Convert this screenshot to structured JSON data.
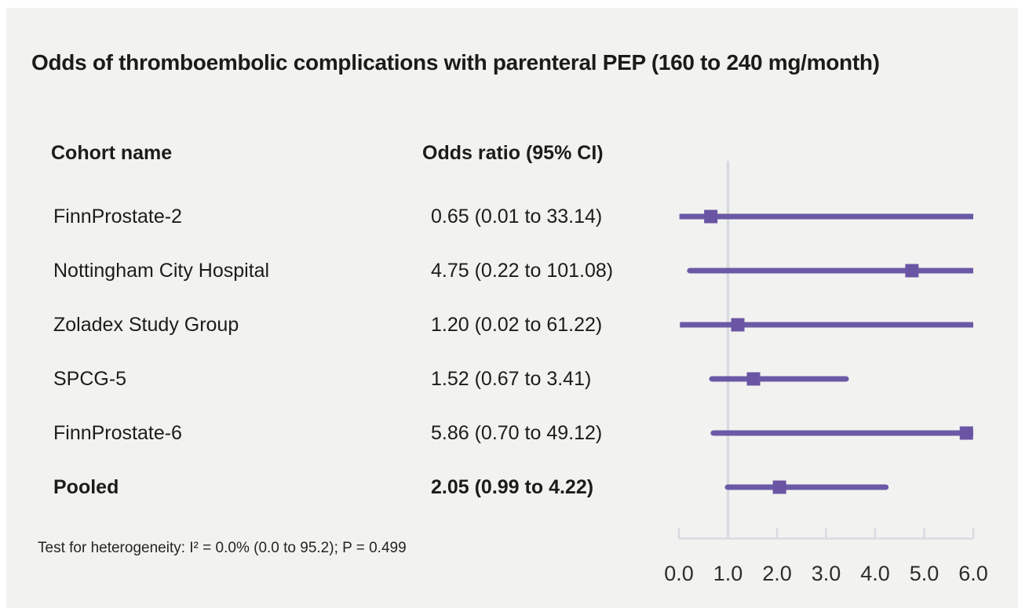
{
  "title": "Odds of thromboembolic complications with parenteral PEP (160 to 240 mg/month)",
  "columns": {
    "cohort": "Cohort name",
    "odds": "Odds ratio (95% CI)"
  },
  "footnote": "Test for heterogeneity: I² = 0.0% (0.0 to 95.2); P = 0.499",
  "colors": {
    "figure_background": "#f2f2f0",
    "page_background": "#ffffff",
    "ci_line": "#6a5aa6",
    "marker": "#6a55a4",
    "axis": "#d8dbe1",
    "reference_line": "#d8dbe1",
    "text": "#1c1c1a",
    "tick_text": "#2d2d2b"
  },
  "chart_data": {
    "type": "forest",
    "xlim": [
      0,
      6
    ],
    "reference_line_x": 1.0,
    "xtick_values": [
      0,
      1,
      2,
      3,
      4,
      5,
      6
    ],
    "xtick_labels": [
      "0.0",
      "1.0",
      "2.0",
      "3.0",
      "4.0",
      "5.0",
      "6.0"
    ],
    "rows": [
      {
        "name": "FinnProstate-2",
        "or": 0.65,
        "ci_low": 0.01,
        "ci_high": 33.14,
        "display": "0.65 (0.01 to 33.14)",
        "is_pooled": false
      },
      {
        "name": "Nottingham City Hospital",
        "or": 4.75,
        "ci_low": 0.22,
        "ci_high": 101.08,
        "display": "4.75 (0.22 to 101.08)",
        "is_pooled": false
      },
      {
        "name": "Zoladex Study Group",
        "or": 1.2,
        "ci_low": 0.02,
        "ci_high": 61.22,
        "display": "1.20 (0.02 to 61.22)",
        "is_pooled": false
      },
      {
        "name": "SPCG-5",
        "or": 1.52,
        "ci_low": 0.67,
        "ci_high": 3.41,
        "display": "1.52 (0.67 to 3.41)",
        "is_pooled": false
      },
      {
        "name": "FinnProstate-6",
        "or": 5.86,
        "ci_low": 0.7,
        "ci_high": 49.12,
        "display": "5.86 (0.70 to 49.12)",
        "is_pooled": false
      },
      {
        "name": "Pooled",
        "or": 2.05,
        "ci_low": 0.99,
        "ci_high": 4.22,
        "display": "2.05 (0.99 to 4.22)",
        "is_pooled": true
      }
    ]
  }
}
